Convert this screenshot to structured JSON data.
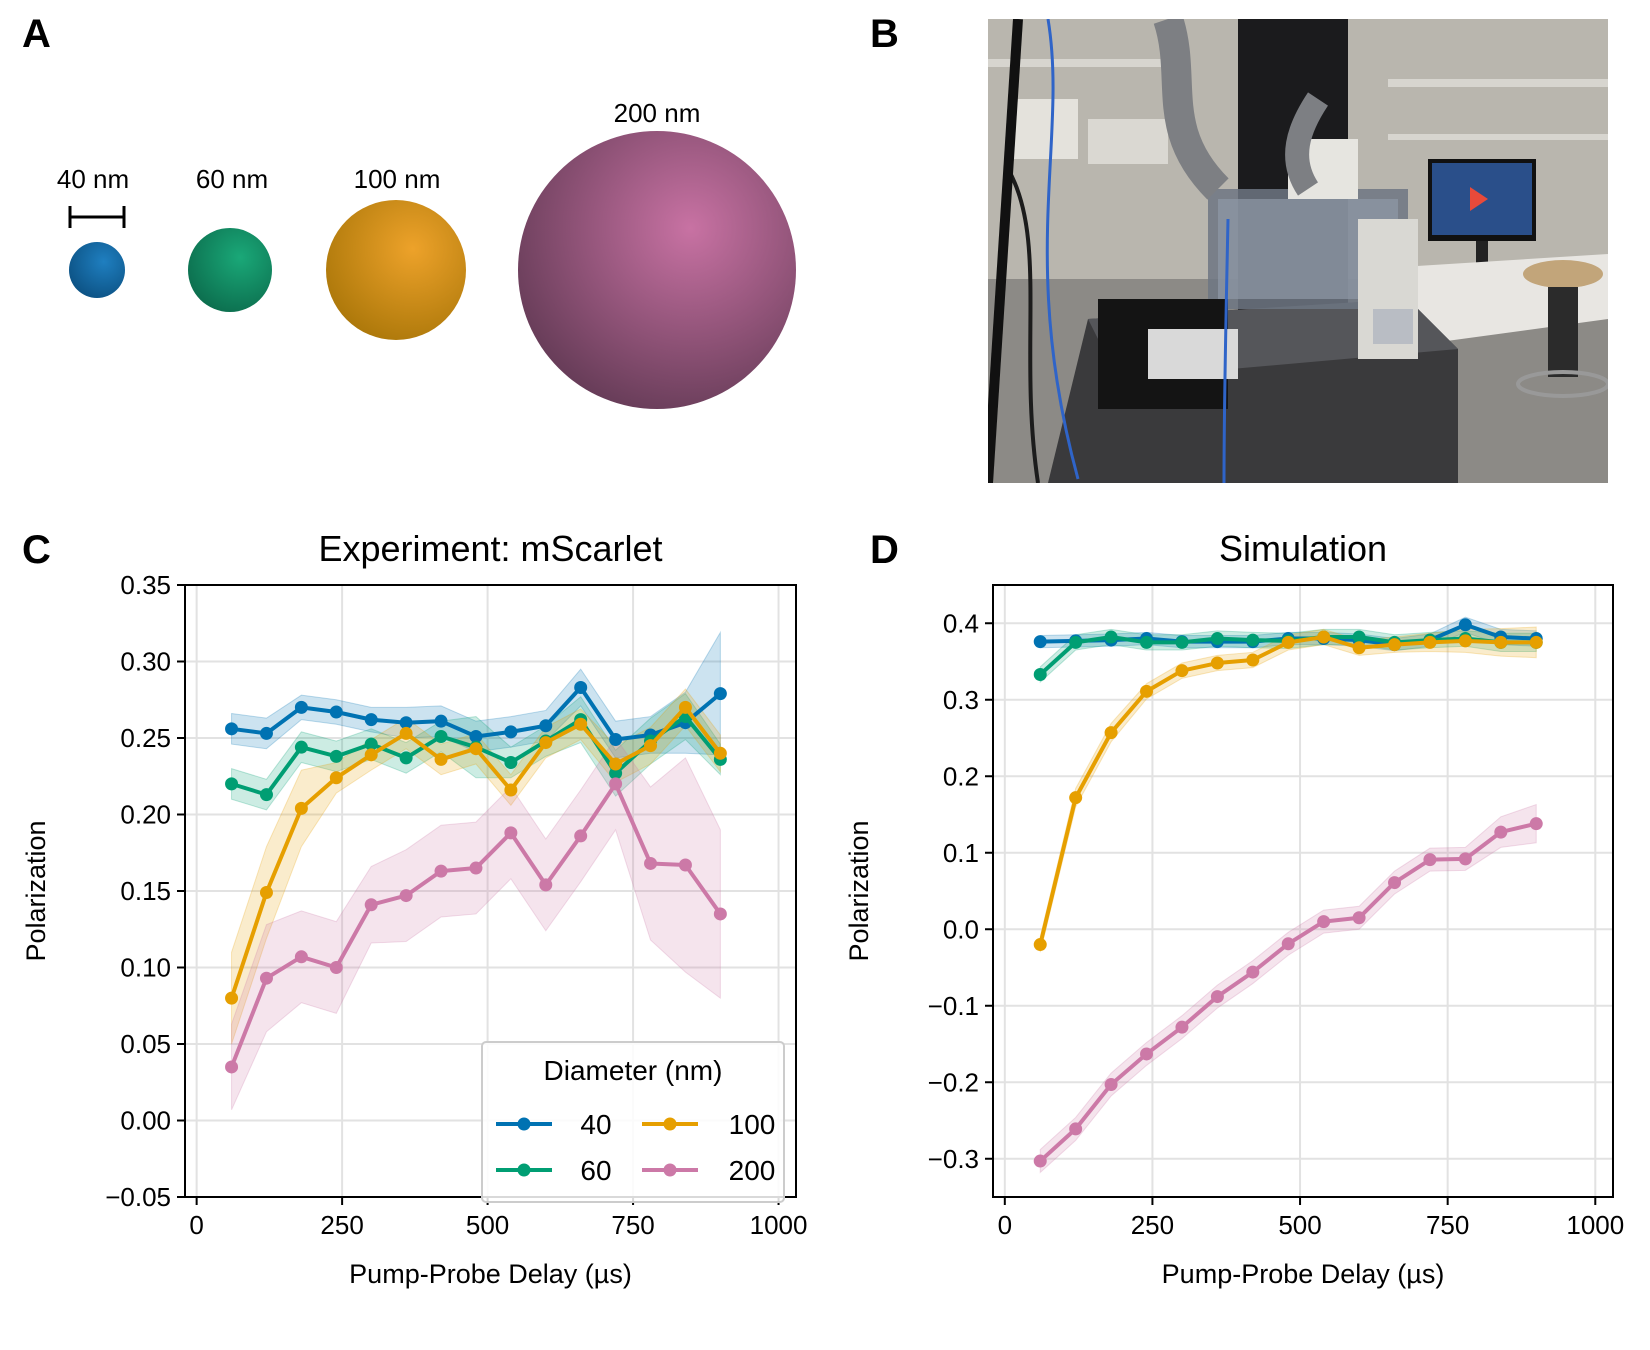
{
  "panels": {
    "a": {
      "letter": "A"
    },
    "b": {
      "letter": "B"
    },
    "c": {
      "letter": "C"
    },
    "d": {
      "letter": "D"
    }
  },
  "spheres": [
    {
      "label": "40 nm",
      "color": "#0b5c96",
      "highlight": "#1f7fc0"
    },
    {
      "label": "60 nm",
      "color": "#0c7f5a",
      "highlight": "#1aa878"
    },
    {
      "label": "100 nm",
      "color": "#c68a10",
      "highlight": "#eda22a"
    },
    {
      "label": "200 nm",
      "color": "#6b3f5c",
      "highlight": "#c872a3"
    }
  ],
  "photo": {
    "description_icon": "lab-microscope-setup-icon"
  },
  "chart_data": [
    {
      "type": "line",
      "title": "Experiment: mScarlet",
      "xlabel": "Pump-Probe Delay (µs)",
      "ylabel": "Polarization",
      "xlim": [
        -20,
        1030
      ],
      "ylim": [
        -0.05,
        0.35
      ],
      "xticks": [
        0,
        250,
        500,
        750,
        1000
      ],
      "xtick_labels": [
        "0",
        "250",
        "500",
        "750",
        "1000"
      ],
      "yticks": [
        -0.05,
        0.0,
        0.05,
        0.1,
        0.15,
        0.2,
        0.25,
        0.3,
        0.35
      ],
      "ytick_labels": [
        "−0.05",
        "0.00",
        "0.05",
        "0.10",
        "0.15",
        "0.20",
        "0.25",
        "0.30",
        "0.35"
      ],
      "grid": true,
      "legend": {
        "title": "Diameter (nm)",
        "placement": "lower-right",
        "columns": 2
      },
      "x": [
        60,
        120,
        180,
        240,
        300,
        360,
        420,
        480,
        540,
        600,
        660,
        720,
        780,
        840,
        900
      ],
      "series": [
        {
          "name": "40",
          "color": "#0072B2",
          "values": [
            0.256,
            0.253,
            0.27,
            0.267,
            0.262,
            0.26,
            0.261,
            0.251,
            0.254,
            0.258,
            0.283,
            0.249,
            0.252,
            0.26,
            0.279
          ],
          "err": [
            0.01,
            0.01,
            0.008,
            0.008,
            0.008,
            0.01,
            0.01,
            0.01,
            0.01,
            0.01,
            0.012,
            0.012,
            0.012,
            0.02,
            0.04
          ]
        },
        {
          "name": "60",
          "color": "#009E73",
          "values": [
            0.22,
            0.213,
            0.244,
            0.238,
            0.246,
            0.237,
            0.251,
            0.244,
            0.234,
            0.248,
            0.262,
            0.227,
            0.248,
            0.264,
            0.236
          ],
          "err": [
            0.01,
            0.01,
            0.01,
            0.01,
            0.01,
            0.01,
            0.01,
            0.02,
            0.01,
            0.01,
            0.015,
            0.015,
            0.015,
            0.015,
            0.01
          ]
        },
        {
          "name": "100",
          "color": "#E69F00",
          "values": [
            0.08,
            0.149,
            0.204,
            0.224,
            0.239,
            0.253,
            0.236,
            0.243,
            0.216,
            0.247,
            0.259,
            0.233,
            0.245,
            0.27,
            0.24
          ],
          "err": [
            0.03,
            0.03,
            0.025,
            0.01,
            0.01,
            0.01,
            0.01,
            0.01,
            0.01,
            0.01,
            0.01,
            0.012,
            0.012,
            0.012,
            0.012
          ]
        },
        {
          "name": "200",
          "color": "#CC79A7",
          "values": [
            0.035,
            0.093,
            0.107,
            0.1,
            0.141,
            0.147,
            0.163,
            0.165,
            0.188,
            0.154,
            0.186,
            0.22,
            0.168,
            0.167,
            0.135
          ],
          "err": [
            0.028,
            0.035,
            0.03,
            0.03,
            0.025,
            0.03,
            0.03,
            0.03,
            0.03,
            0.03,
            0.03,
            0.03,
            0.05,
            0.07,
            0.055
          ]
        }
      ]
    },
    {
      "type": "line",
      "title": "Simulation",
      "xlabel": "Pump-Probe Delay (µs)",
      "ylabel": "Polarization",
      "xlim": [
        -20,
        1030
      ],
      "ylim": [
        -0.35,
        0.45
      ],
      "xticks": [
        0,
        250,
        500,
        750,
        1000
      ],
      "xtick_labels": [
        "0",
        "250",
        "500",
        "750",
        "1000"
      ],
      "yticks": [
        -0.3,
        -0.2,
        -0.1,
        0.0,
        0.1,
        0.2,
        0.3,
        0.4
      ],
      "ytick_labels": [
        "−0.3",
        "−0.2",
        "−0.1",
        "0.0",
        "0.1",
        "0.2",
        "0.3",
        "0.4"
      ],
      "grid": true,
      "x": [
        60,
        120,
        180,
        240,
        300,
        360,
        420,
        480,
        540,
        600,
        660,
        720,
        780,
        840,
        900
      ],
      "series": [
        {
          "name": "40",
          "color": "#0072B2",
          "values": [
            0.376,
            0.377,
            0.378,
            0.38,
            0.376,
            0.376,
            0.376,
            0.38,
            0.38,
            0.378,
            0.372,
            0.378,
            0.398,
            0.382,
            0.38
          ],
          "err": [
            0.008,
            0.008,
            0.008,
            0.008,
            0.008,
            0.008,
            0.008,
            0.008,
            0.008,
            0.008,
            0.008,
            0.008,
            0.01,
            0.01,
            0.01
          ]
        },
        {
          "name": "60",
          "color": "#009E73",
          "values": [
            0.333,
            0.375,
            0.382,
            0.375,
            0.375,
            0.38,
            0.378,
            0.377,
            0.382,
            0.382,
            0.375,
            0.378,
            0.38,
            0.375,
            0.375
          ],
          "err": [
            0.01,
            0.01,
            0.01,
            0.01,
            0.01,
            0.01,
            0.01,
            0.01,
            0.01,
            0.01,
            0.01,
            0.01,
            0.01,
            0.012,
            0.012
          ]
        },
        {
          "name": "100",
          "color": "#E69F00",
          "values": [
            -0.02,
            0.172,
            0.257,
            0.311,
            0.338,
            0.348,
            0.352,
            0.375,
            0.382,
            0.368,
            0.372,
            0.375,
            0.377,
            0.375,
            0.375
          ],
          "err": [
            0.01,
            0.012,
            0.012,
            0.01,
            0.01,
            0.01,
            0.01,
            0.01,
            0.01,
            0.01,
            0.01,
            0.012,
            0.015,
            0.018,
            0.02
          ]
        },
        {
          "name": "200",
          "color": "#CC79A7",
          "values": [
            -0.303,
            -0.261,
            -0.203,
            -0.163,
            -0.128,
            -0.088,
            -0.056,
            -0.019,
            0.01,
            0.015,
            0.061,
            0.091,
            0.092,
            0.127,
            0.138
          ],
          "err": [
            0.015,
            0.015,
            0.015,
            0.015,
            0.015,
            0.015,
            0.015,
            0.015,
            0.015,
            0.015,
            0.015,
            0.015,
            0.015,
            0.02,
            0.025
          ]
        }
      ]
    }
  ]
}
